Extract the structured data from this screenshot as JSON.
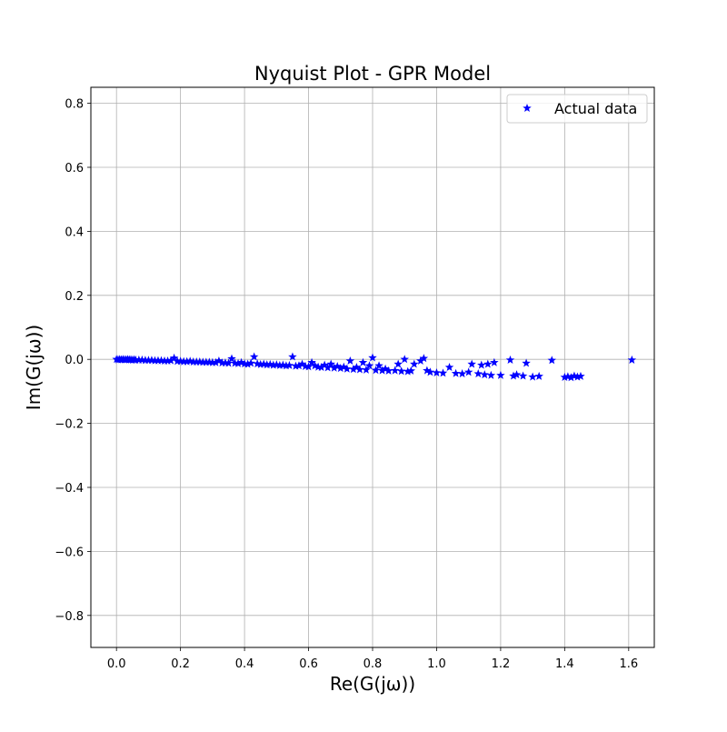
{
  "chart_data": {
    "type": "scatter",
    "title": "Nyquist Plot - GPR Model",
    "xlabel": "Re(G(jω))",
    "ylabel": "Im(G(jω))",
    "xlim": [
      -0.08,
      1.68
    ],
    "ylim": [
      -0.9,
      0.85
    ],
    "xticks": [
      0.0,
      0.2,
      0.4,
      0.6,
      0.8,
      1.0,
      1.2,
      1.4,
      1.6
    ],
    "yticks": [
      -0.8,
      -0.6,
      -0.4,
      -0.2,
      0.0,
      0.2,
      0.4,
      0.6,
      0.8
    ],
    "xtick_labels": [
      "0.0",
      "0.2",
      "0.4",
      "0.6",
      "0.8",
      "1.0",
      "1.2",
      "1.4",
      "1.6"
    ],
    "ytick_labels": [
      "−0.8",
      "−0.6",
      "−0.4",
      "−0.2",
      "0.0",
      "0.2",
      "0.4",
      "0.6",
      "0.8"
    ],
    "grid": true,
    "legend_position": "top-right",
    "marker": "star",
    "series": [
      {
        "name": "Actual data",
        "color": "#0000ff",
        "points": [
          [
            0.0,
            0.0
          ],
          [
            0.005,
            -0.001
          ],
          [
            0.01,
            0.0
          ],
          [
            0.015,
            -0.001
          ],
          [
            0.02,
            0.0
          ],
          [
            0.025,
            -0.001
          ],
          [
            0.03,
            -0.001
          ],
          [
            0.035,
            0.0
          ],
          [
            0.04,
            -0.001
          ],
          [
            0.045,
            -0.001
          ],
          [
            0.05,
            -0.002
          ],
          [
            0.055,
            -0.001
          ],
          [
            0.06,
            -0.002
          ],
          [
            0.07,
            -0.002
          ],
          [
            0.08,
            -0.002
          ],
          [
            0.09,
            -0.003
          ],
          [
            0.1,
            -0.003
          ],
          [
            0.11,
            -0.003
          ],
          [
            0.12,
            -0.004
          ],
          [
            0.13,
            -0.004
          ],
          [
            0.14,
            -0.004
          ],
          [
            0.15,
            -0.005
          ],
          [
            0.16,
            -0.005
          ],
          [
            0.17,
            -0.004
          ],
          [
            0.18,
            0.004
          ],
          [
            0.19,
            -0.006
          ],
          [
            0.2,
            -0.006
          ],
          [
            0.21,
            -0.007
          ],
          [
            0.22,
            -0.007
          ],
          [
            0.23,
            -0.006
          ],
          [
            0.24,
            -0.008
          ],
          [
            0.25,
            -0.008
          ],
          [
            0.26,
            -0.008
          ],
          [
            0.27,
            -0.009
          ],
          [
            0.28,
            -0.009
          ],
          [
            0.29,
            -0.009
          ],
          [
            0.3,
            -0.01
          ],
          [
            0.31,
            -0.01
          ],
          [
            0.32,
            -0.005
          ],
          [
            0.33,
            -0.011
          ],
          [
            0.34,
            -0.011
          ],
          [
            0.35,
            -0.012
          ],
          [
            0.36,
            0.002
          ],
          [
            0.37,
            -0.012
          ],
          [
            0.38,
            -0.013
          ],
          [
            0.39,
            -0.01
          ],
          [
            0.4,
            -0.014
          ],
          [
            0.41,
            -0.015
          ],
          [
            0.42,
            -0.012
          ],
          [
            0.43,
            0.008
          ],
          [
            0.44,
            -0.014
          ],
          [
            0.45,
            -0.016
          ],
          [
            0.46,
            -0.015
          ],
          [
            0.47,
            -0.017
          ],
          [
            0.48,
            -0.016
          ],
          [
            0.49,
            -0.018
          ],
          [
            0.5,
            -0.017
          ],
          [
            0.51,
            -0.019
          ],
          [
            0.52,
            -0.018
          ],
          [
            0.53,
            -0.02
          ],
          [
            0.54,
            -0.019
          ],
          [
            0.55,
            0.008
          ],
          [
            0.56,
            -0.021
          ],
          [
            0.57,
            -0.02
          ],
          [
            0.58,
            -0.015
          ],
          [
            0.59,
            -0.022
          ],
          [
            0.6,
            -0.023
          ],
          [
            0.61,
            -0.01
          ],
          [
            0.62,
            -0.02
          ],
          [
            0.63,
            -0.024
          ],
          [
            0.64,
            -0.025
          ],
          [
            0.65,
            -0.018
          ],
          [
            0.66,
            -0.026
          ],
          [
            0.67,
            -0.015
          ],
          [
            0.68,
            -0.027
          ],
          [
            0.69,
            -0.022
          ],
          [
            0.7,
            -0.028
          ],
          [
            0.71,
            -0.024
          ],
          [
            0.72,
            -0.03
          ],
          [
            0.73,
            -0.005
          ],
          [
            0.74,
            -0.031
          ],
          [
            0.75,
            -0.025
          ],
          [
            0.76,
            -0.032
          ],
          [
            0.77,
            -0.01
          ],
          [
            0.78,
            -0.033
          ],
          [
            0.79,
            -0.02
          ],
          [
            0.8,
            0.005
          ],
          [
            0.81,
            -0.034
          ],
          [
            0.82,
            -0.02
          ],
          [
            0.83,
            -0.035
          ],
          [
            0.84,
            -0.03
          ],
          [
            0.85,
            -0.036
          ],
          [
            0.87,
            -0.035
          ],
          [
            0.88,
            -0.015
          ],
          [
            0.89,
            -0.037
          ],
          [
            0.9,
            0.0
          ],
          [
            0.91,
            -0.038
          ],
          [
            0.92,
            -0.036
          ],
          [
            0.93,
            -0.015
          ],
          [
            0.95,
            -0.005
          ],
          [
            0.96,
            0.003
          ],
          [
            0.97,
            -0.035
          ],
          [
            0.98,
            -0.04
          ],
          [
            1.0,
            -0.042
          ],
          [
            1.02,
            -0.043
          ],
          [
            1.04,
            -0.025
          ],
          [
            1.06,
            -0.044
          ],
          [
            1.08,
            -0.045
          ],
          [
            1.1,
            -0.04
          ],
          [
            1.11,
            -0.015
          ],
          [
            1.13,
            -0.045
          ],
          [
            1.14,
            -0.018
          ],
          [
            1.15,
            -0.048
          ],
          [
            1.16,
            -0.015
          ],
          [
            1.17,
            -0.05
          ],
          [
            1.18,
            -0.01
          ],
          [
            1.2,
            -0.05
          ],
          [
            1.23,
            -0.002
          ],
          [
            1.24,
            -0.052
          ],
          [
            1.25,
            -0.048
          ],
          [
            1.27,
            -0.052
          ],
          [
            1.28,
            -0.012
          ],
          [
            1.3,
            -0.055
          ],
          [
            1.32,
            -0.053
          ],
          [
            1.36,
            -0.003
          ],
          [
            1.4,
            -0.056
          ],
          [
            1.41,
            -0.054
          ],
          [
            1.42,
            -0.057
          ],
          [
            1.43,
            -0.052
          ],
          [
            1.44,
            -0.055
          ],
          [
            1.45,
            -0.053
          ],
          [
            1.61,
            -0.002
          ]
        ]
      }
    ]
  }
}
